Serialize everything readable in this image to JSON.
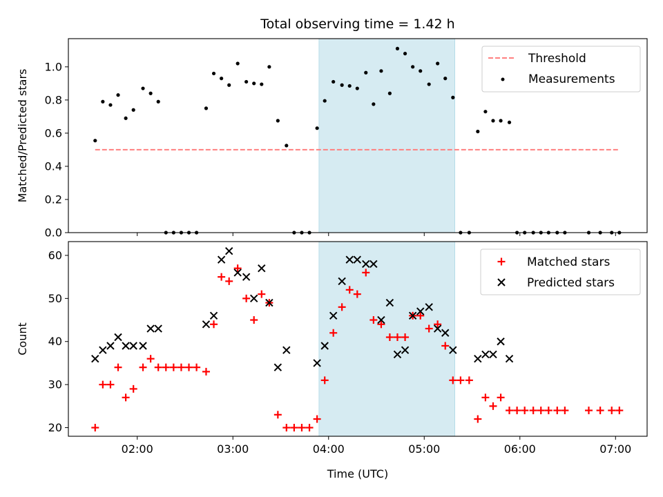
{
  "chart_data": [
    {
      "type": "scatter",
      "title": "Total observing time = 1.42 h",
      "xlabel": "",
      "ylabel": "Matched/Predicted stars",
      "x_unit": "hours UTC",
      "xlim": [
        1.28,
        7.33
      ],
      "ylim": [
        0,
        1.17
      ],
      "yticks": [
        "0.0",
        "0.2",
        "0.4",
        "0.6",
        "0.8",
        "1.0"
      ],
      "ytick_values": [
        0,
        0.2,
        0.4,
        0.6,
        0.8,
        1.0
      ],
      "highlight_band": {
        "x_start": 3.9,
        "x_end": 5.32,
        "color": "#add8e6"
      },
      "legend_position": "top-right",
      "threshold": {
        "name": "Threshold",
        "value": 0.5,
        "x_start": 1.56,
        "x_end": 7.04,
        "color": "#ff7f7f"
      },
      "series": [
        {
          "name": "Measurements",
          "color": "#000000",
          "x": [
            1.56,
            1.64,
            1.72,
            1.8,
            1.88,
            1.96,
            2.06,
            2.14,
            2.22,
            2.3,
            2.38,
            2.46,
            2.54,
            2.62,
            2.72,
            2.8,
            2.88,
            2.96,
            3.05,
            3.14,
            3.22,
            3.3,
            3.38,
            3.47,
            3.56,
            3.64,
            3.72,
            3.8,
            3.88,
            3.96,
            4.05,
            4.14,
            4.22,
            4.3,
            4.39,
            4.47,
            4.55,
            4.64,
            4.72,
            4.8,
            4.88,
            4.96,
            5.05,
            5.14,
            5.22,
            5.3,
            5.38,
            5.47,
            5.56,
            5.64,
            5.72,
            5.8,
            5.89,
            5.97,
            6.05,
            6.14,
            6.22,
            6.3,
            6.39,
            6.47,
            6.72,
            6.84,
            6.96,
            7.04
          ],
          "y": [
            0.555,
            0.79,
            0.77,
            0.83,
            0.69,
            0.74,
            0.87,
            0.84,
            0.79,
            0,
            0,
            0,
            0,
            0,
            0.75,
            0.96,
            0.93,
            0.89,
            1.02,
            0.91,
            0.9,
            0.895,
            1.0,
            0.675,
            0.525,
            0,
            0,
            0,
            0.63,
            0.795,
            0.91,
            0.89,
            0.885,
            0.87,
            0.965,
            0.775,
            0.975,
            0.84,
            1.11,
            1.08,
            1.0,
            0.975,
            0.895,
            1.02,
            0.93,
            0.815,
            0,
            0,
            0.61,
            0.73,
            0.675,
            0.675,
            0.665,
            0,
            0,
            0,
            0,
            0,
            0,
            0,
            0,
            0,
            0,
            0
          ]
        }
      ],
      "legend_entries": [
        "Threshold",
        "Measurements"
      ]
    },
    {
      "type": "scatter",
      "title": "",
      "xlabel": "Time (UTC)",
      "ylabel": "Count",
      "x_unit": "hours UTC",
      "xlim": [
        1.28,
        7.33
      ],
      "ylim": [
        18,
        63.2
      ],
      "xticks": [
        "02:00",
        "03:00",
        "04:00",
        "05:00",
        "06:00",
        "07:00"
      ],
      "xtick_values": [
        2,
        3,
        4,
        5,
        6,
        7
      ],
      "yticks": [
        "20",
        "30",
        "40",
        "50",
        "60"
      ],
      "ytick_values": [
        20,
        30,
        40,
        50,
        60
      ],
      "highlight_band": {
        "x_start": 3.9,
        "x_end": 5.32,
        "color": "#add8e6"
      },
      "legend_position": "top-right",
      "series": [
        {
          "name": "Matched stars",
          "marker": "plus",
          "color": "#ff0000",
          "x": [
            1.56,
            1.64,
            1.72,
            1.8,
            1.88,
            1.96,
            2.06,
            2.14,
            2.22,
            2.3,
            2.38,
            2.46,
            2.54,
            2.62,
            2.72,
            2.8,
            2.88,
            2.96,
            3.05,
            3.14,
            3.22,
            3.3,
            3.38,
            3.47,
            3.56,
            3.64,
            3.72,
            3.8,
            3.88,
            3.96,
            4.05,
            4.14,
            4.22,
            4.3,
            4.39,
            4.47,
            4.55,
            4.64,
            4.72,
            4.8,
            4.88,
            4.96,
            5.05,
            5.14,
            5.22,
            5.3,
            5.38,
            5.47,
            5.56,
            5.64,
            5.72,
            5.8,
            5.89,
            5.97,
            6.05,
            6.14,
            6.22,
            6.3,
            6.39,
            6.47,
            6.72,
            6.84,
            6.96,
            7.04
          ],
          "y": [
            20,
            30,
            30,
            34,
            27,
            29,
            34,
            36,
            34,
            34,
            34,
            34,
            34,
            34,
            33,
            44,
            55,
            54,
            57,
            50,
            45,
            51,
            49,
            23,
            20,
            20,
            20,
            20,
            22,
            31,
            42,
            48,
            52,
            51,
            56,
            45,
            44,
            41,
            41,
            41,
            46,
            46,
            43,
            44,
            39,
            31,
            31,
            31,
            22,
            27,
            25,
            27,
            24,
            24,
            24,
            24,
            24,
            24,
            24,
            24,
            24,
            24,
            24,
            24
          ]
        },
        {
          "name": "Predicted stars",
          "marker": "x",
          "color": "#000000",
          "x": [
            1.56,
            1.64,
            1.72,
            1.8,
            1.88,
            1.96,
            2.06,
            2.14,
            2.22,
            2.72,
            2.8,
            2.88,
            2.96,
            3.05,
            3.14,
            3.22,
            3.3,
            3.38,
            3.47,
            3.56,
            3.88,
            3.96,
            4.05,
            4.14,
            4.22,
            4.3,
            4.39,
            4.47,
            4.55,
            4.64,
            4.72,
            4.8,
            4.88,
            4.96,
            5.05,
            5.14,
            5.22,
            5.3,
            5.56,
            5.64,
            5.72,
            5.8,
            5.89
          ],
          "y": [
            36,
            38,
            39,
            41,
            39,
            39,
            39,
            43,
            43,
            44,
            46,
            59,
            61,
            56,
            55,
            50,
            57,
            49,
            34,
            38,
            35,
            39,
            46,
            54,
            59,
            59,
            58,
            58,
            45,
            49,
            37,
            38,
            46,
            47,
            48,
            43,
            42,
            38,
            36,
            37,
            37,
            40,
            36
          ]
        }
      ],
      "legend_entries": [
        "Matched stars",
        "Predicted stars"
      ]
    }
  ]
}
